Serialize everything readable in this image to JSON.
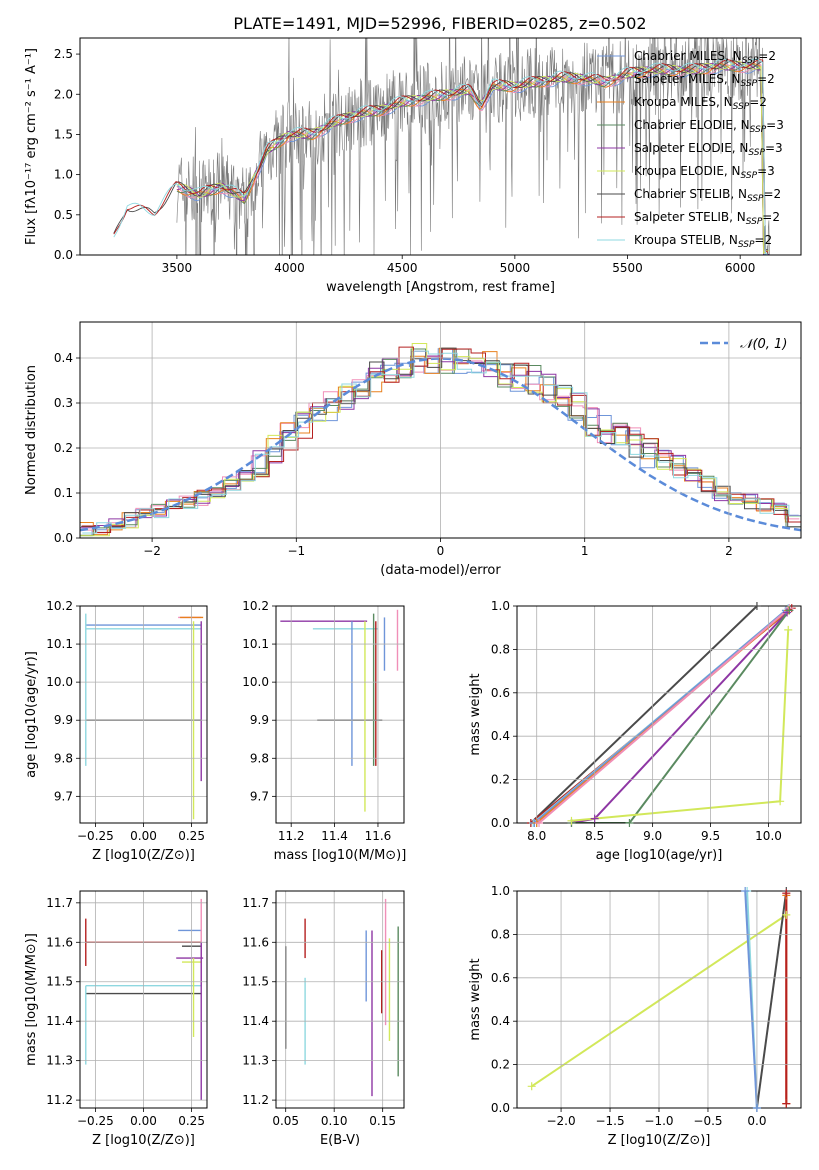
{
  "figure": {
    "title": "PLATE=1491, MJD=52996, FIBERID=0285, z=0.502"
  },
  "colors": {
    "chabrier_miles": "#6f95d9",
    "salpeter_miles": "#f08fb8",
    "kroupa_miles": "#e8801f",
    "chabrier_elodie": "#5a8a60",
    "salpeter_elodie": "#8e37a4",
    "kroupa_elodie": "#d2e85a",
    "chabrier_stelib": "#4a4a4a",
    "salpeter_stelib": "#b52020",
    "kroupa_stelib": "#8fd8e0",
    "data": "#777777",
    "gauss": "#5b8bd9"
  },
  "chart_data": [
    {
      "id": "spectrum",
      "type": "line",
      "title": "PLATE=1491, MJD=52996, FIBERID=0285, z=0.502",
      "xlabel": "wavelength [Angstrom, rest frame]",
      "ylabel": "Flux [fλ10⁻¹⁷ erg cm⁻² s⁻¹ A⁻¹]",
      "xlim": [
        3070,
        6270
      ],
      "ylim": [
        0,
        2.7
      ],
      "xticks": [
        3500,
        4000,
        4500,
        5000,
        5500,
        6000
      ],
      "yticks": [
        0.0,
        0.5,
        1.0,
        1.5,
        2.0,
        2.5
      ],
      "legend_position": "top-right",
      "legend": [
        "Chabrier MILES, N_SSP=2",
        "Salpeter MILES, N_SSP=2",
        "Kroupa MILES, N_SSP=2",
        "Chabrier ELODIE, N_SSP=3",
        "Salpeter ELODIE, N_SSP=3",
        "Kroupa ELODIE, N_SSP=3",
        "Chabrier STELIB, N_SSP=2",
        "Salpeter STELIB, N_SSP=2",
        "Kroupa STELIB, N_SSP=2"
      ],
      "continuum": {
        "x": [
          3220,
          3280,
          3400,
          3500,
          3600,
          3700,
          3800,
          3900,
          4000,
          4100,
          4200,
          4300,
          4400,
          4500,
          4600,
          4700,
          4800,
          4850,
          4900,
          5000,
          5100,
          5200,
          5300,
          5400,
          5500,
          5600,
          5700,
          5800,
          5900,
          6000,
          6100
        ],
        "y": [
          0.2,
          0.58,
          0.5,
          0.85,
          0.75,
          0.85,
          0.7,
          1.3,
          1.5,
          1.5,
          1.65,
          1.75,
          1.8,
          1.9,
          1.95,
          2.0,
          2.05,
          1.85,
          2.1,
          2.1,
          2.15,
          2.2,
          2.2,
          2.15,
          2.25,
          2.3,
          2.3,
          2.3,
          2.35,
          2.35,
          2.35
        ]
      }
    },
    {
      "id": "residuals",
      "type": "histogram",
      "xlabel": "(data-model)/error",
      "ylabel": "Normed distribution",
      "xlim": [
        -2.5,
        2.5
      ],
      "ylim": [
        0,
        0.48
      ],
      "xticks": [
        -2,
        -1,
        0,
        1,
        2
      ],
      "yticks": [
        0.0,
        0.1,
        0.2,
        0.3,
        0.4
      ],
      "legend": [
        "𝒩(0, 1)"
      ],
      "legend_position": "top-right",
      "bin_width": 0.1,
      "bin_start": -2.5,
      "values": [
        0.02,
        0.02,
        0.03,
        0.04,
        0.05,
        0.06,
        0.07,
        0.08,
        0.09,
        0.1,
        0.12,
        0.14,
        0.17,
        0.2,
        0.23,
        0.25,
        0.27,
        0.29,
        0.31,
        0.33,
        0.36,
        0.38,
        0.39,
        0.4,
        0.38,
        0.4,
        0.4,
        0.39,
        0.38,
        0.37,
        0.36,
        0.35,
        0.33,
        0.31,
        0.29,
        0.26,
        0.24,
        0.22,
        0.21,
        0.19,
        0.18,
        0.16,
        0.14,
        0.12,
        0.1,
        0.09,
        0.08,
        0.07,
        0.06,
        0.04
      ],
      "gaussian": {
        "mu": 0,
        "sigma": 1
      }
    },
    {
      "id": "age_vs_z",
      "type": "scatter",
      "xlabel": "Z [log10(Z/Z⊙)]",
      "ylabel": "age [log10(age/yr)]",
      "xlim": [
        -0.33,
        0.33
      ],
      "ylim": [
        9.63,
        10.2
      ],
      "xticks": [
        -0.25,
        0.0,
        0.25
      ],
      "yticks": [
        9.7,
        9.8,
        9.9,
        10.0,
        10.1,
        10.2
      ],
      "errorbars": [
        {
          "model": "chabrier_stelib",
          "x": 0.0,
          "xerr": 0.3,
          "y": 9.9
        },
        {
          "model": "kroupa_stelib",
          "x": 0.0,
          "xerr": 0.3,
          "y": 10.14
        },
        {
          "model": "chabrier_miles",
          "x": 0.0,
          "xerr": 0.3,
          "y": 10.15
        },
        {
          "model": "salpeter_miles",
          "x": 0.24,
          "xerr": 0.06,
          "y": 10.17
        },
        {
          "model": "kroupa_miles",
          "x": 0.25,
          "xerr": 0.06,
          "y": 10.17
        },
        {
          "model": "kroupa_elodie",
          "x": 0.26,
          "y": 9.9,
          "yerr": 0.26
        },
        {
          "model": "salpeter_elodie",
          "x": 0.3,
          "y": 9.95,
          "yerr": 0.21
        },
        {
          "model": "kroupa_stelib",
          "x": -0.3,
          "y": 9.98,
          "yerr": 0.2
        }
      ]
    },
    {
      "id": "age_vs_mass",
      "type": "scatter",
      "xlabel": "mass [log10(M/M⊙)]",
      "ylabel": "",
      "xlim": [
        11.13,
        11.72
      ],
      "ylim": [
        9.63,
        10.2
      ],
      "xticks": [
        11.2,
        11.4,
        11.6
      ],
      "yticks": [
        9.7,
        9.8,
        9.9,
        10.0,
        10.1,
        10.2
      ],
      "errorbars": [
        {
          "model": "chabrier_stelib",
          "x": 11.47,
          "xerr": 0.15,
          "y": 9.9
        },
        {
          "model": "salpeter_elodie",
          "x": 11.35,
          "xerr": 0.2,
          "y": 10.16
        },
        {
          "model": "kroupa_stelib",
          "x": 11.45,
          "xerr": 0.15,
          "y": 10.14
        },
        {
          "model": "chabrier_miles",
          "x": 11.48,
          "y": 9.97,
          "yerr": 0.19
        },
        {
          "model": "kroupa_elodie",
          "x": 11.54,
          "y": 9.91,
          "yerr": 0.25
        },
        {
          "model": "salpeter_stelib",
          "x": 11.59,
          "y": 9.97,
          "yerr": 0.19
        },
        {
          "model": "chabrier_elodie",
          "x": 11.58,
          "y": 9.98,
          "yerr": 0.2
        },
        {
          "model": "salpeter_miles",
          "x": 11.69,
          "y": 10.11,
          "yerr": 0.08
        },
        {
          "model": "chabrier_miles",
          "x": 11.63,
          "y": 10.1,
          "yerr": 0.07
        }
      ]
    },
    {
      "id": "weight_vs_age",
      "type": "line",
      "xlabel": "age [log10(age/yr)]",
      "ylabel": "mass weight",
      "xlim": [
        7.83,
        10.28
      ],
      "ylim": [
        0,
        1
      ],
      "xticks": [
        8.0,
        8.5,
        9.0,
        9.5,
        10.0
      ],
      "yticks": [
        0.0,
        0.2,
        0.4,
        0.6,
        0.8,
        1.0
      ],
      "series": [
        {
          "model": "chabrier_stelib",
          "x": [
            7.95,
            9.9
          ],
          "y": [
            0.0,
            1.0
          ]
        },
        {
          "model": "salpeter_stelib",
          "x": [
            7.95,
            10.2
          ],
          "y": [
            0.0,
            0.99
          ]
        },
        {
          "model": "kroupa_stelib",
          "x": [
            7.97,
            10.17
          ],
          "y": [
            0.0,
            0.99
          ]
        },
        {
          "model": "chabrier_miles",
          "x": [
            7.98,
            10.15
          ],
          "y": [
            0.0,
            0.98
          ]
        },
        {
          "model": "kroupa_miles",
          "x": [
            8.0,
            10.17
          ],
          "y": [
            0.0,
            0.98
          ]
        },
        {
          "model": "salpeter_miles",
          "x": [
            8.02,
            10.18
          ],
          "y": [
            0.0,
            0.99
          ]
        },
        {
          "model": "salpeter_elodie",
          "x": [
            8.3,
            8.5,
            10.16
          ],
          "y": [
            0.0,
            0.02,
            0.97
          ]
        },
        {
          "model": "chabrier_elodie",
          "x": [
            8.3,
            8.8,
            10.18
          ],
          "y": [
            0.0,
            0.0,
            0.98
          ]
        },
        {
          "model": "kroupa_elodie",
          "x": [
            8.3,
            10.1,
            10.17
          ],
          "y": [
            0.01,
            0.1,
            0.89
          ]
        }
      ]
    },
    {
      "id": "mass_vs_z",
      "type": "scatter",
      "xlabel": "Z [log10(Z/Z⊙)]",
      "ylabel": "mass [log10(M/M⊙)]",
      "xlim": [
        -0.33,
        0.33
      ],
      "ylim": [
        11.18,
        11.73
      ],
      "xticks": [
        -0.25,
        0.0,
        0.25
      ],
      "yticks": [
        11.2,
        11.3,
        11.4,
        11.5,
        11.6,
        11.7
      ],
      "errorbars": [
        {
          "model": "salpeter_stelib",
          "x": 0.0,
          "xerr": 0.3,
          "y": 11.6
        },
        {
          "model": "kroupa_stelib",
          "x": 0.0,
          "xerr": 0.3,
          "y": 11.49
        },
        {
          "model": "chabrier_stelib",
          "x": 0.0,
          "xerr": 0.3,
          "y": 11.47
        },
        {
          "model": "salpeter_elodie",
          "x": 0.24,
          "xerr": 0.07,
          "y": 11.56
        },
        {
          "model": "chabrier_miles",
          "x": 0.24,
          "xerr": 0.06,
          "y": 11.63
        },
        {
          "model": "chabrier_stelib",
          "x": 0.25,
          "xerr": 0.05,
          "y": 11.59
        },
        {
          "model": "kroupa_elodie",
          "x": 0.25,
          "xerr": 0.05,
          "y": 11.55
        },
        {
          "model": "salpeter_stelib",
          "x": -0.3,
          "y": 11.6,
          "yerr": 0.06
        },
        {
          "model": "kroupa_stelib",
          "x": -0.3,
          "y": 11.39,
          "yerr": 0.1
        },
        {
          "model": "salpeter_miles",
          "x": 0.3,
          "y": 11.6,
          "yerr": 0.11
        },
        {
          "model": "salpeter_elodie",
          "x": 0.3,
          "y": 11.4,
          "yerr": 0.2
        },
        {
          "model": "kroupa_elodie",
          "x": 0.26,
          "y": 11.46,
          "yerr": 0.1
        }
      ]
    },
    {
      "id": "mass_vs_ebv",
      "type": "scatter",
      "xlabel": "E(B-V)",
      "ylabel": "",
      "xlim": [
        0.04,
        0.172
      ],
      "ylim": [
        11.18,
        11.73
      ],
      "xticks": [
        0.05,
        0.1,
        0.15
      ],
      "yticks": [
        11.2,
        11.3,
        11.4,
        11.5,
        11.6,
        11.7
      ],
      "errorbars": [
        {
          "model": "chabrier_stelib",
          "x": 0.05,
          "y": 11.46,
          "yerr": 0.13
        },
        {
          "model": "salpeter_stelib",
          "x": 0.07,
          "y": 11.61,
          "yerr": 0.05
        },
        {
          "model": "kroupa_stelib",
          "x": 0.07,
          "y": 11.4,
          "yerr": 0.11
        },
        {
          "model": "chabrier_miles",
          "x": 0.133,
          "y": 11.54,
          "yerr": 0.09
        },
        {
          "model": "salpeter_elodie",
          "x": 0.139,
          "y": 11.42,
          "yerr": 0.21
        },
        {
          "model": "salpeter_stelib",
          "x": 0.149,
          "y": 11.5,
          "yerr": 0.08
        },
        {
          "model": "salpeter_miles",
          "x": 0.153,
          "y": 11.55,
          "yerr": 0.16
        },
        {
          "model": "kroupa_elodie",
          "x": 0.157,
          "y": 11.48,
          "yerr": 0.13
        },
        {
          "model": "chabrier_elodie",
          "x": 0.166,
          "y": 11.45,
          "yerr": 0.19
        }
      ]
    },
    {
      "id": "weight_vs_z",
      "type": "line",
      "xlabel": "Z [log10(Z/Z⊙)]",
      "ylabel": "mass weight",
      "xlim": [
        -2.45,
        0.45
      ],
      "ylim": [
        0,
        1
      ],
      "xticks": [
        -2.0,
        -1.5,
        -1.0,
        -0.5,
        0.0
      ],
      "yticks": [
        0.0,
        0.2,
        0.4,
        0.6,
        0.8,
        1.0
      ],
      "series": [
        {
          "model": "kroupa_elodie",
          "x": [
            -2.3,
            0.3
          ],
          "y": [
            0.1,
            0.89
          ]
        },
        {
          "model": "chabrier_stelib",
          "x": [
            0.0,
            0.3
          ],
          "y": [
            0.0,
            1.0
          ]
        },
        {
          "model": "kroupa_stelib",
          "x": [
            -0.1,
            0.0
          ],
          "y": [
            1.0,
            0.0
          ]
        },
        {
          "model": "chabrier_miles",
          "x": [
            -0.12,
            0.0
          ],
          "y": [
            1.0,
            0.0
          ]
        },
        {
          "model": "salpeter_miles",
          "x": [
            0.3,
            0.3
          ],
          "y": [
            0.02,
            0.99
          ]
        },
        {
          "model": "kroupa_miles",
          "x": [
            0.3,
            0.3
          ],
          "y": [
            0.02,
            0.98
          ]
        },
        {
          "model": "salpeter_stelib",
          "x": [
            0.3,
            0.3
          ],
          "y": [
            0.02,
            0.99
          ]
        }
      ]
    }
  ]
}
